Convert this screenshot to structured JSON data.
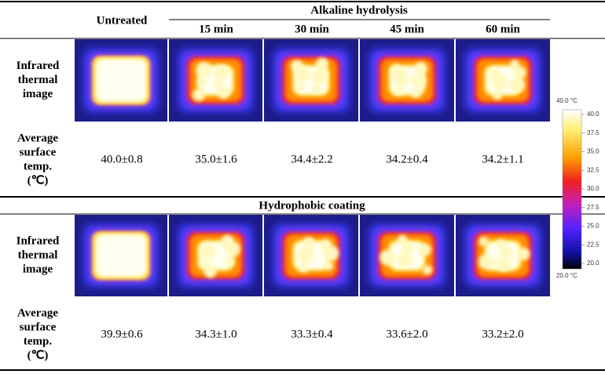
{
  "header": {
    "untreated": "Untreated",
    "group": "Alkaline hydrolysis",
    "times": [
      "15 min",
      "30 min",
      "45 min",
      "60 min"
    ]
  },
  "section1": {
    "image_label": [
      "Infrared",
      "thermal",
      "image"
    ],
    "temp_label": [
      "Average",
      "surface",
      "temp.",
      "(℃)"
    ],
    "values": [
      "40.0±0.8",
      "35.0±1.6",
      "34.4±2.2",
      "34.2±0.4",
      "34.2±1.1"
    ]
  },
  "section2": {
    "title": "Hydrophobic coating",
    "image_label": [
      "Infrared",
      "thermal",
      "image"
    ],
    "temp_label": [
      "Average",
      "surface",
      "temp.",
      "(℃)"
    ],
    "values": [
      "39.9±0.6",
      "34.3±1.0",
      "33.3±0.4",
      "33.6±2.0",
      "33.2±2.0"
    ]
  },
  "colorbar": {
    "max_label": "40.0 °C",
    "min_label": "20.0 °C",
    "ticks": [
      "40.0",
      "37.5",
      "35.0",
      "32.5",
      "30.0",
      "27.5",
      "25.0",
      "22.5",
      "20.0"
    ]
  }
}
